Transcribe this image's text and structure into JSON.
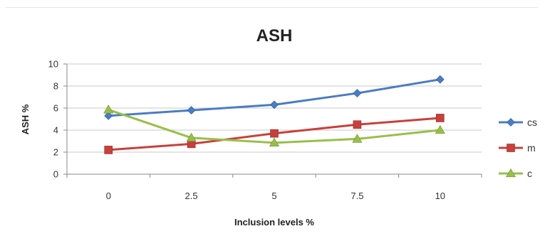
{
  "chart_data": {
    "type": "line",
    "title": "ASH",
    "xlabel": "Inclusion levels %",
    "ylabel": "ASH %",
    "categories": [
      "0",
      "2.5",
      "5",
      "7.5",
      "10"
    ],
    "ylim": [
      0,
      10
    ],
    "yticks": [
      0,
      2,
      4,
      6,
      8,
      10
    ],
    "grid": true,
    "legend_position": "right",
    "series": [
      {
        "name": "cs",
        "color": "#4a7cc4",
        "marker": "diamond",
        "values": [
          5.3,
          5.8,
          6.3,
          7.35,
          8.6
        ]
      },
      {
        "name": "m",
        "color": "#c8403c",
        "marker": "square",
        "values": [
          2.2,
          2.75,
          3.7,
          4.5,
          5.1
        ]
      },
      {
        "name": "c",
        "color": "#98bf4a",
        "marker": "triangle",
        "values": [
          5.85,
          3.3,
          2.85,
          3.2,
          4.0
        ]
      }
    ]
  }
}
